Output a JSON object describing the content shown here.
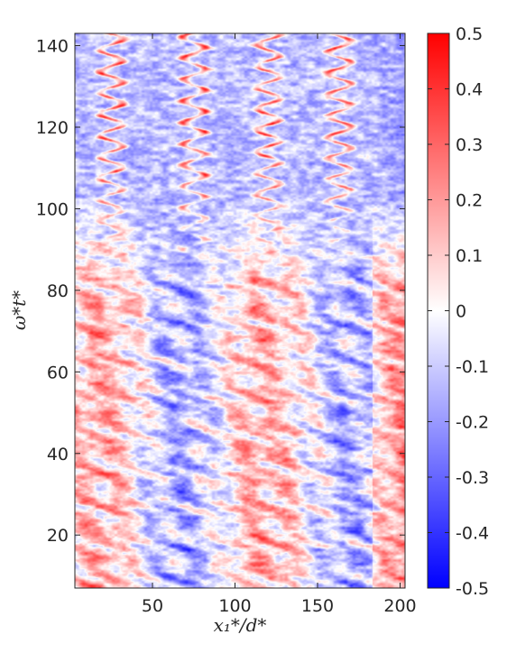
{
  "chart_data": {
    "type": "heatmap",
    "title": "",
    "xlabel": "x₁*/d*",
    "ylabel": "ω*t*",
    "xlim": [
      3,
      203
    ],
    "ylim": [
      7,
      143
    ],
    "x_ticks": [
      50,
      100,
      150,
      200
    ],
    "y_ticks": [
      20,
      40,
      60,
      80,
      100,
      120,
      140
    ],
    "colorbar": {
      "range": [
        -0.5,
        0.5
      ],
      "ticks": [
        0.5,
        0.4,
        0.3,
        0.2,
        0.1,
        0,
        -0.1,
        -0.2,
        -0.3,
        -0.4,
        -0.5
      ],
      "tick_labels": [
        "0.5",
        "0.4",
        "0.3",
        "0.2",
        "0.1",
        "0",
        "-0.1",
        "-0.2",
        "-0.3",
        "-0.4",
        "-0.5"
      ],
      "low_color": "#0000ff",
      "mid_color": "#ffffff",
      "high_color": "#ff0000"
    },
    "field_description": {
      "upper_region_time_range": [
        85,
        143
      ],
      "upper_pattern": "sinuous red streaks near x≈25, 75, 120, 165 oscillating with strong amplitude",
      "lower_region_time_range": [
        7,
        85
      ],
      "lower_pattern": "broad alternating red/blue vertical bands of weaker amplitude, red near x≈20, 100, 185, 200"
    },
    "grid": false
  }
}
